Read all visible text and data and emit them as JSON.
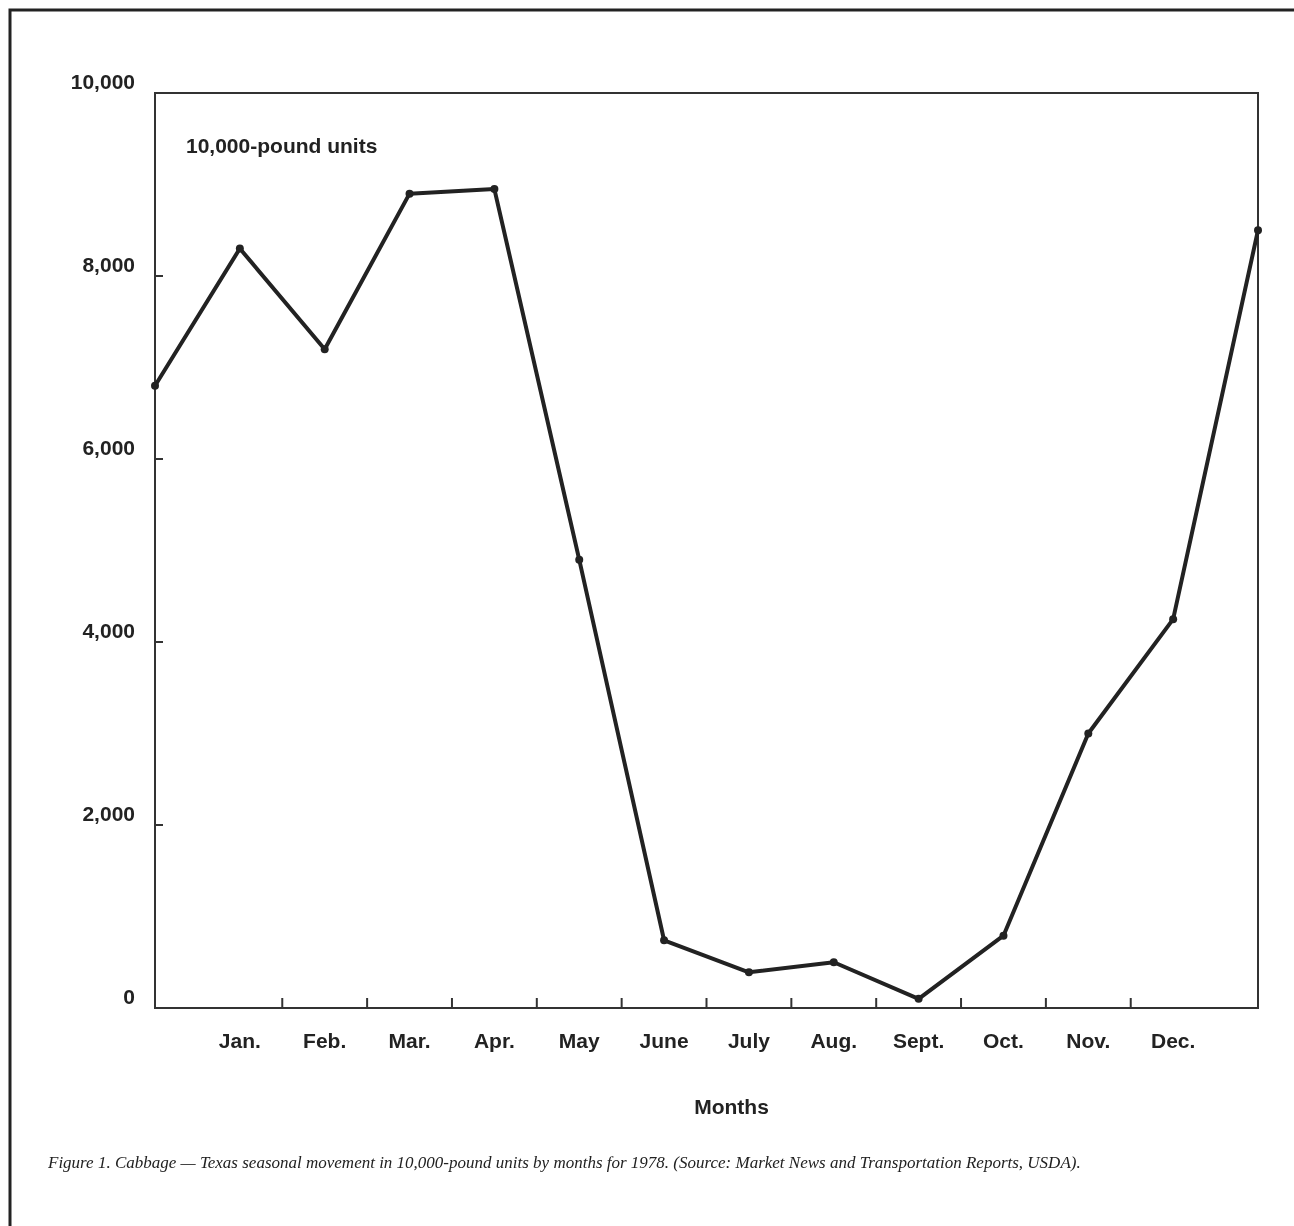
{
  "chart_data": {
    "type": "line",
    "xlabel": "Months",
    "ylabel": "10,000-pound units",
    "categories": [
      null,
      "Jan.",
      "Feb.",
      "Mar.",
      "Apr.",
      "May",
      "June",
      "July",
      "Aug.",
      "Sept.",
      "Oct.",
      "Nov.",
      "Dec.",
      null
    ],
    "values": [
      6800,
      8300,
      7200,
      8900,
      8950,
      4900,
      740,
      390,
      500,
      100,
      790,
      3000,
      4250,
      8500
    ],
    "color": "#222222",
    "marker": "circle",
    "line_style": "solid",
    "grid": false,
    "ylim": [
      0,
      10000
    ],
    "yticks": [
      0,
      {
        "value": 2000,
        "label": "2,000"
      },
      {
        "value": 4000,
        "label": "4,000"
      },
      {
        "value": 6000,
        "label": "6,000"
      },
      {
        "value": 8000,
        "label": "8,000"
      },
      {
        "value": 10000,
        "label": "10,000"
      }
    ],
    "annotations": [
      "Figure 1.   Cabbage — Texas seasonal movement in 10,000-pound units by months for 1978. (Source: Market News and Transportation Reports, USDA)."
    ]
  }
}
